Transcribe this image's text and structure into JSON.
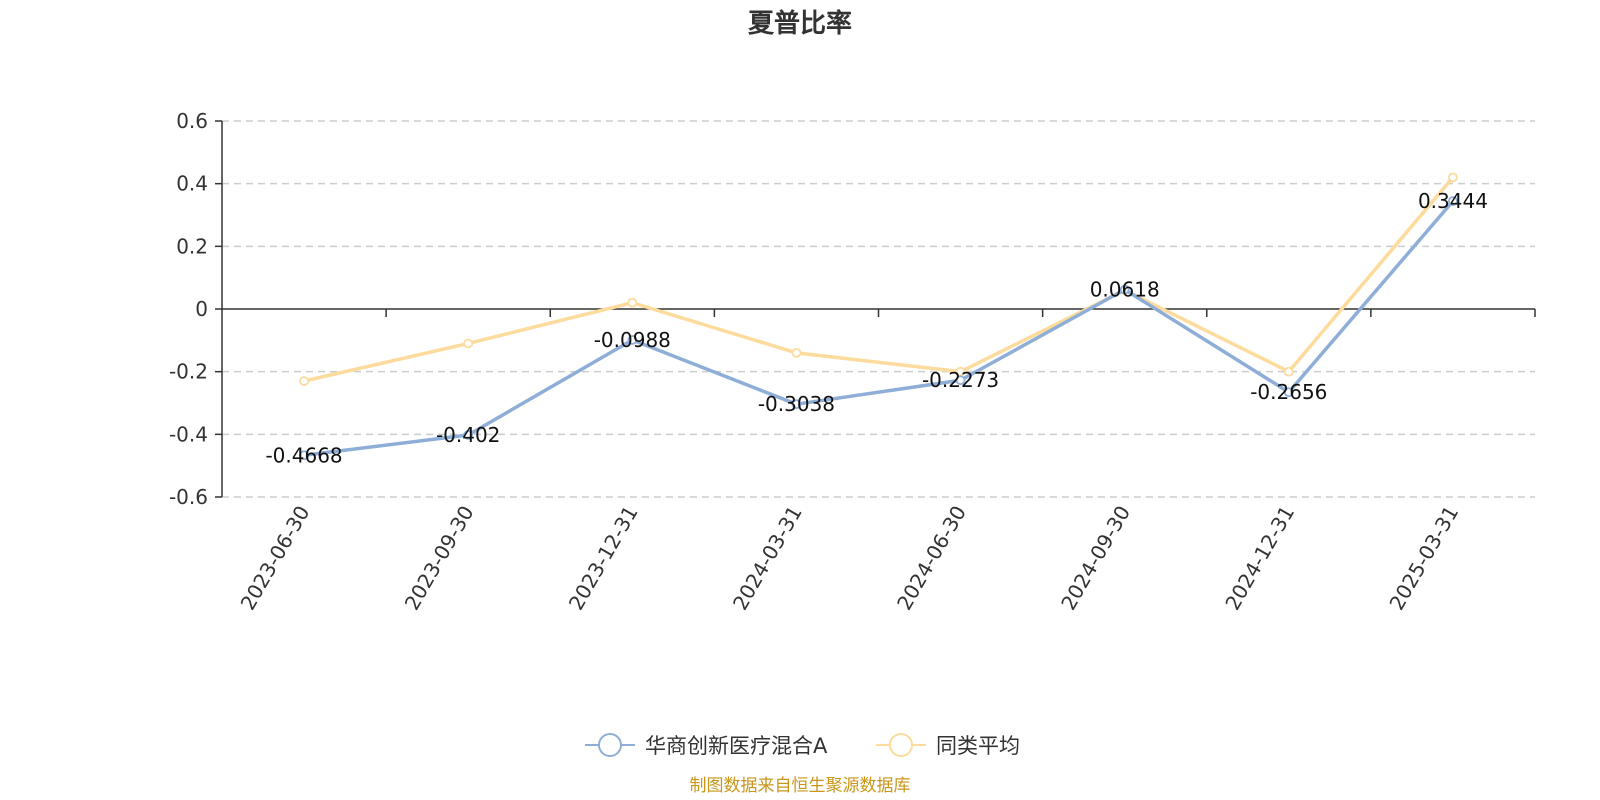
{
  "chart_data": {
    "type": "line",
    "title": "夏普比率",
    "categories": [
      "2023-06-30",
      "2023-09-30",
      "2023-12-31",
      "2024-03-31",
      "2024-06-30",
      "2024-09-30",
      "2024-12-31",
      "2025-03-31"
    ],
    "series": [
      {
        "name": "华商创新医疗混合A",
        "color": "#8eaed8",
        "values": [
          -0.4668,
          -0.402,
          -0.0988,
          -0.3038,
          -0.2273,
          0.0618,
          -0.2656,
          0.3444
        ],
        "labels": [
          "-0.4668",
          "-0.402",
          "-0.0988",
          "-0.3038",
          "-0.2273",
          "0.0618",
          "-0.2656",
          "0.3444"
        ]
      },
      {
        "name": "同类平均",
        "color": "#fcdb9c",
        "values": [
          -0.23,
          -0.11,
          0.02,
          -0.14,
          -0.2,
          0.06,
          -0.2,
          0.42
        ]
      }
    ],
    "ylim": [
      -0.6,
      0.6
    ],
    "yticks": [
      0.6,
      0.4,
      0.2,
      0,
      -0.2,
      -0.4,
      -0.6
    ],
    "ytick_labels": [
      "0.6",
      "0.4",
      "0.2",
      "0",
      "-0.2",
      "-0.4",
      "-0.6"
    ],
    "grid": true,
    "legend_position": "bottom-center",
    "axis_color": "#333333",
    "grid_color": "#cccccc"
  },
  "footer": {
    "source": "制图数据来自恒生聚源数据库",
    "source_color": "#c9961a"
  }
}
